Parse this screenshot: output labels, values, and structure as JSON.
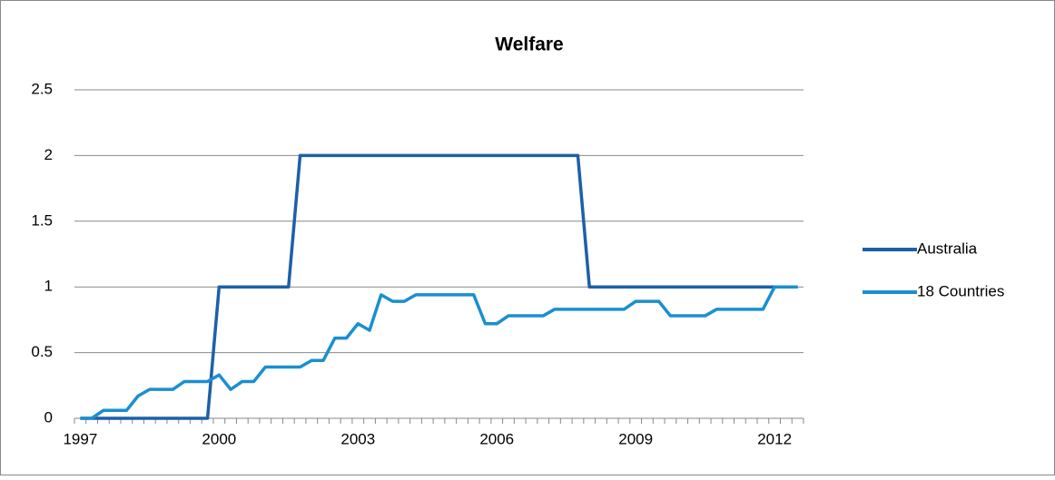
{
  "chart_data": {
    "type": "line",
    "title": "Welfare",
    "categories": [
      "1997",
      null,
      null,
      null,
      null,
      null,
      null,
      null,
      null,
      null,
      null,
      null,
      "2000",
      null,
      null,
      null,
      null,
      null,
      null,
      null,
      null,
      null,
      null,
      null,
      "2003",
      null,
      null,
      null,
      null,
      null,
      null,
      null,
      null,
      null,
      null,
      null,
      "2006",
      null,
      null,
      null,
      null,
      null,
      null,
      null,
      null,
      null,
      null,
      null,
      "2009",
      null,
      null,
      null,
      null,
      null,
      null,
      null,
      null,
      null,
      null,
      null,
      "2012",
      null,
      null
    ],
    "series": [
      {
        "name": "Australia",
        "color": "#1f5fa8",
        "values": [
          0,
          0,
          0,
          0,
          0,
          0,
          0,
          0,
          0,
          0,
          0,
          0,
          1,
          1,
          1,
          1,
          1,
          1,
          1,
          2,
          2,
          2,
          2,
          2,
          2,
          2,
          2,
          2,
          2,
          2,
          2,
          2,
          2,
          2,
          2,
          2,
          2,
          2,
          2,
          2,
          2,
          2,
          2,
          2,
          1,
          1,
          1,
          1,
          1,
          1,
          1,
          1,
          1,
          1,
          1,
          1,
          1,
          1,
          1,
          1,
          1,
          1,
          1
        ]
      },
      {
        "name": "18 Countries",
        "color": "#1a8fd0",
        "values": [
          0,
          0,
          0.06,
          0.06,
          0.06,
          0.17,
          0.22,
          0.22,
          0.22,
          0.28,
          0.28,
          0.28,
          0.33,
          0.22,
          0.28,
          0.28,
          0.39,
          0.39,
          0.39,
          0.39,
          0.44,
          0.44,
          0.61,
          0.61,
          0.72,
          0.67,
          0.94,
          0.89,
          0.89,
          0.94,
          0.94,
          0.94,
          0.94,
          0.94,
          0.94,
          0.72,
          0.72,
          0.78,
          0.78,
          0.78,
          0.78,
          0.83,
          0.83,
          0.83,
          0.83,
          0.83,
          0.83,
          0.83,
          0.89,
          0.89,
          0.89,
          0.78,
          0.78,
          0.78,
          0.78,
          0.83,
          0.83,
          0.83,
          0.83,
          0.83,
          1,
          1,
          1
        ]
      }
    ],
    "ylim": [
      0,
      2.5
    ],
    "yticks": [
      0,
      0.5,
      1,
      1.5,
      2,
      2.5
    ],
    "grid": true,
    "legend": "right"
  }
}
